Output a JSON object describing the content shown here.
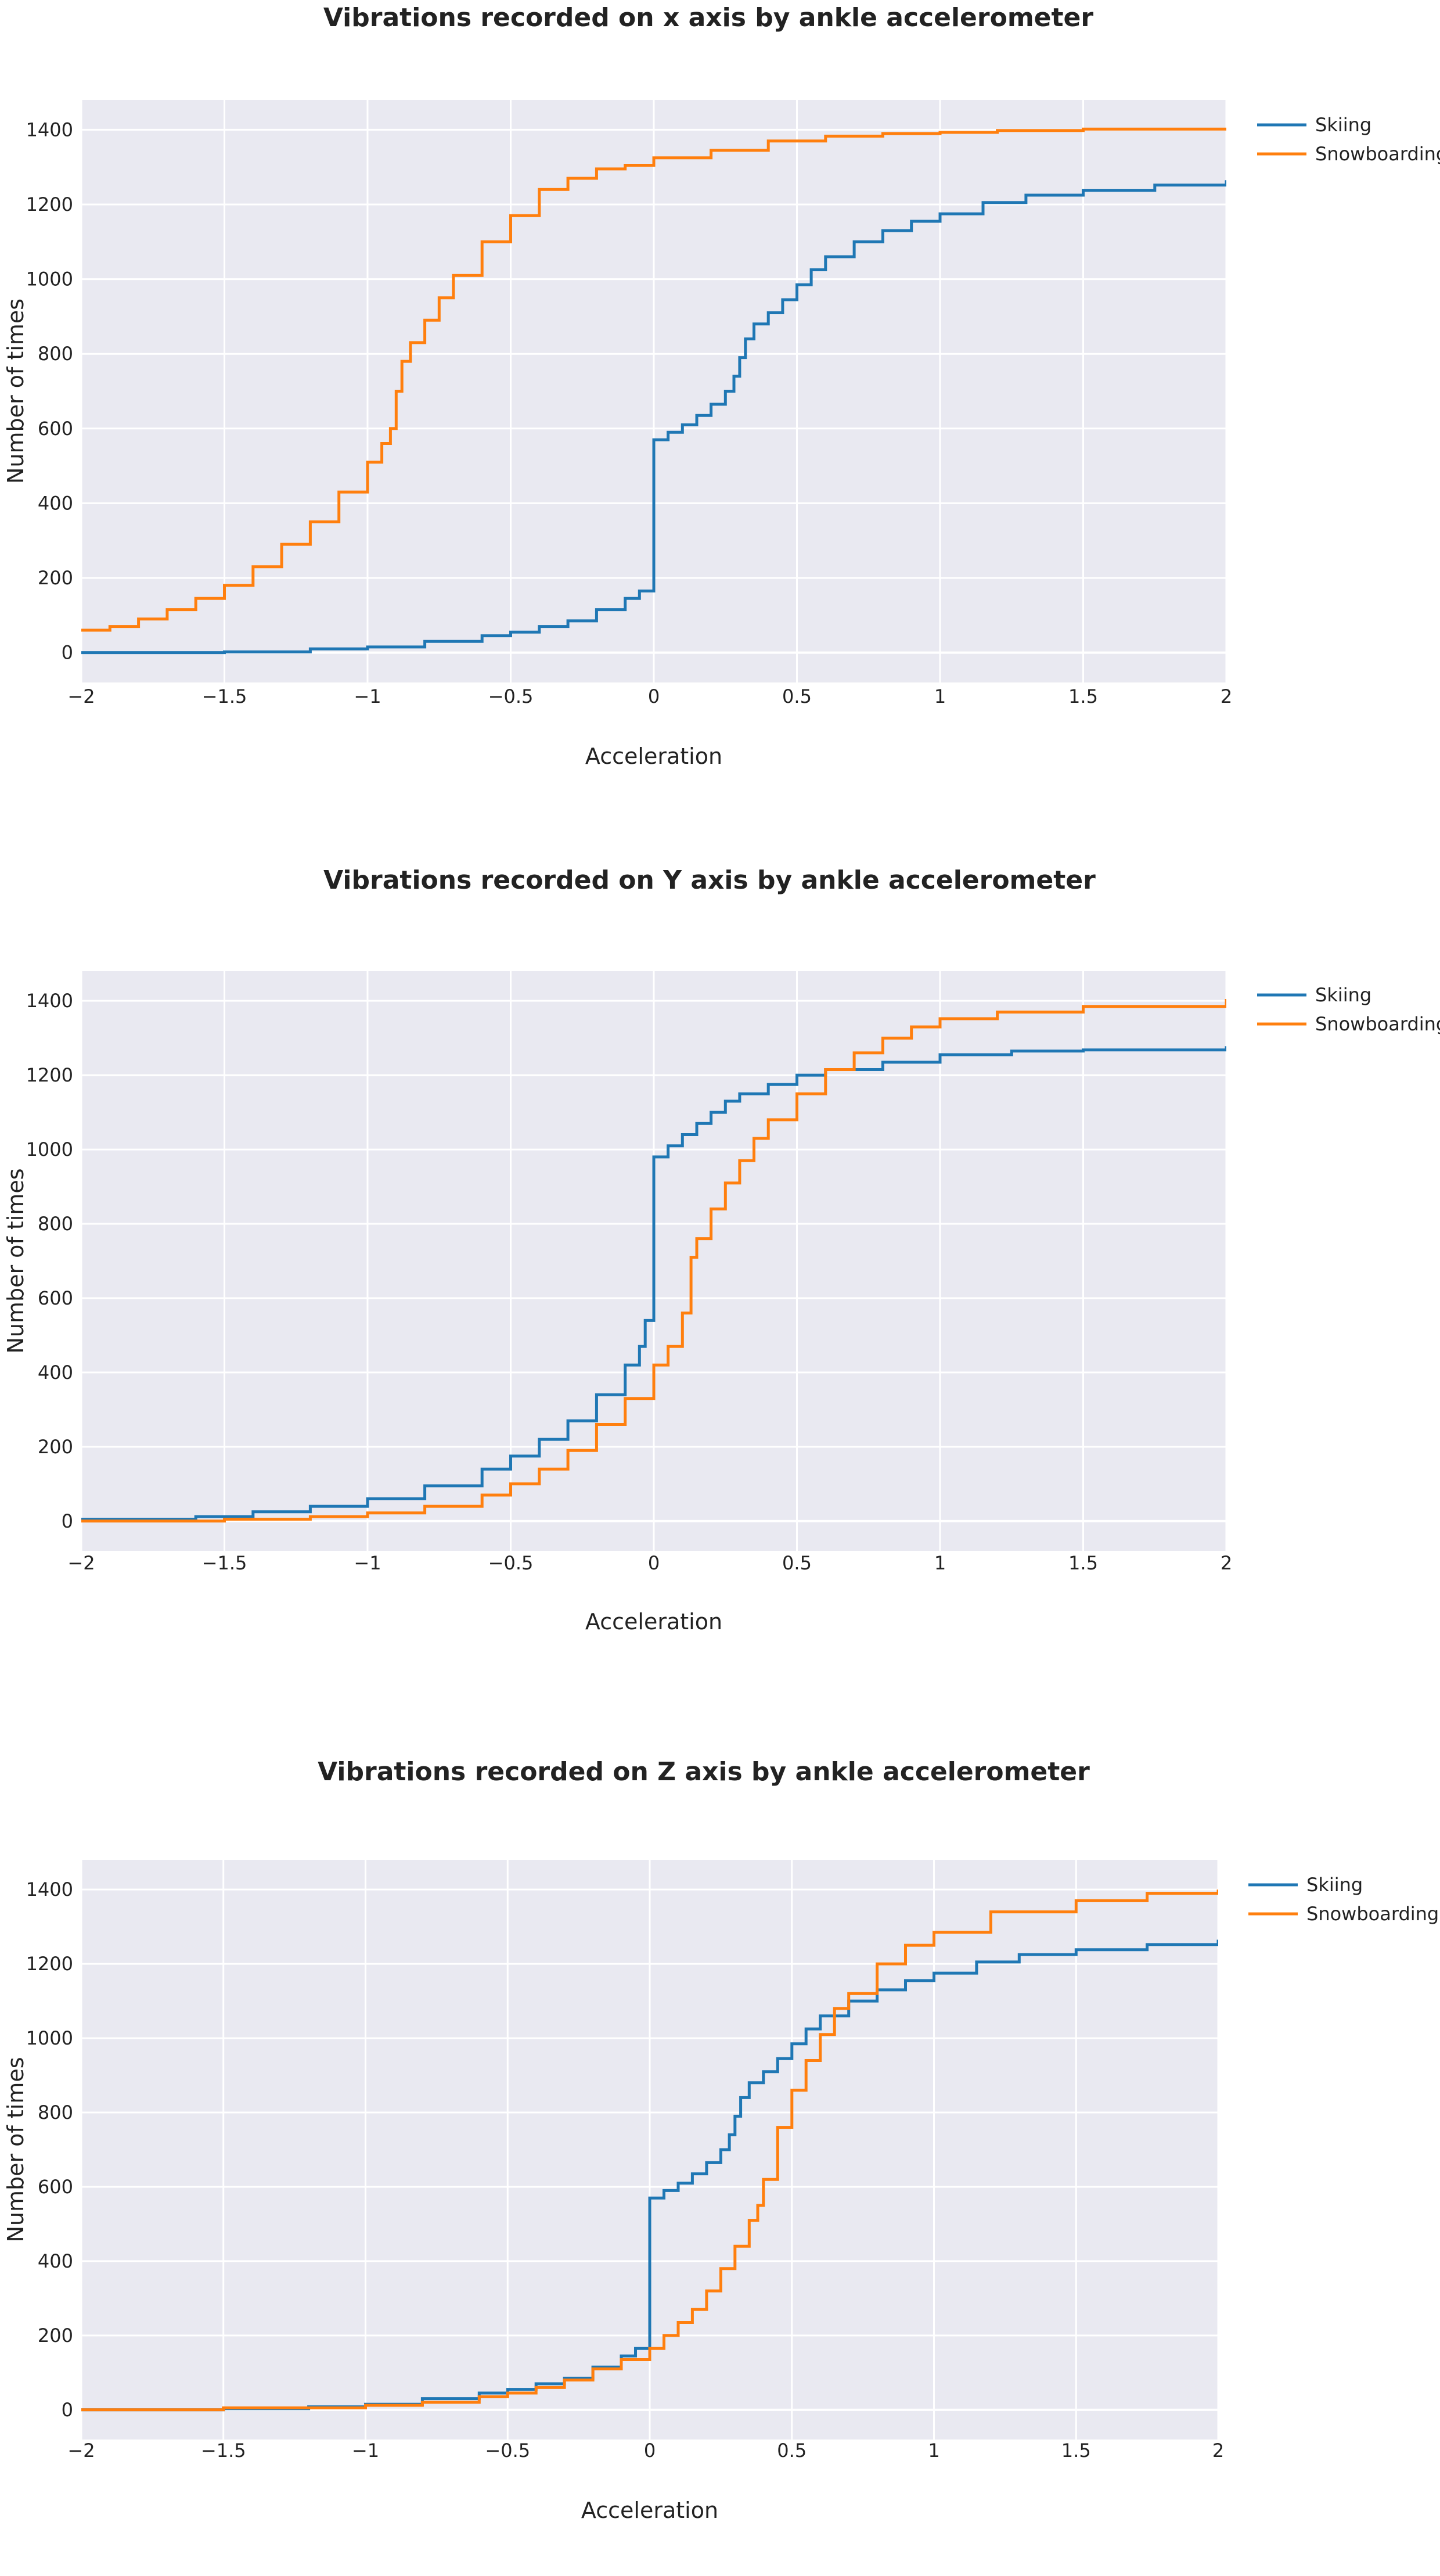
{
  "chart_data": [
    {
      "type": "line",
      "title": "Vibrations recorded on x axis by ankle accelerometer",
      "xlabel": "Acceleration",
      "ylabel": "Number of times",
      "xlim": [
        -2,
        2
      ],
      "ylim": [
        -80,
        1480
      ],
      "xticks": [
        -2,
        -1.5,
        -1,
        -0.5,
        0,
        0.5,
        1,
        1.5,
        2
      ],
      "xtick_labels": [
        "−2",
        "−1.5",
        "−1",
        "−0.5",
        "0",
        "0.5",
        "1",
        "1.5",
        "2"
      ],
      "yticks": [
        0,
        200,
        400,
        600,
        800,
        1000,
        1200,
        1400
      ],
      "ytick_labels": [
        "0",
        "200",
        "400",
        "600",
        "800",
        "1000",
        "1200",
        "1400"
      ],
      "grid": true,
      "legend": "top-right",
      "series": [
        {
          "name": "Skiing",
          "color": "#1f77b4",
          "points": [
            [
              -2,
              0
            ],
            [
              -1.5,
              2
            ],
            [
              -1.2,
              10
            ],
            [
              -1,
              15
            ],
            [
              -0.8,
              30
            ],
            [
              -0.6,
              45
            ],
            [
              -0.5,
              55
            ],
            [
              -0.4,
              70
            ],
            [
              -0.3,
              85
            ],
            [
              -0.2,
              115
            ],
            [
              -0.1,
              145
            ],
            [
              -0.05,
              165
            ],
            [
              0,
              195
            ],
            [
              0,
              570
            ],
            [
              0.05,
              590
            ],
            [
              0.1,
              610
            ],
            [
              0.15,
              635
            ],
            [
              0.2,
              665
            ],
            [
              0.25,
              700
            ],
            [
              0.28,
              740
            ],
            [
              0.3,
              790
            ],
            [
              0.32,
              840
            ],
            [
              0.35,
              880
            ],
            [
              0.4,
              910
            ],
            [
              0.45,
              945
            ],
            [
              0.5,
              985
            ],
            [
              0.55,
              1025
            ],
            [
              0.6,
              1060
            ],
            [
              0.7,
              1100
            ],
            [
              0.8,
              1130
            ],
            [
              0.9,
              1155
            ],
            [
              1,
              1175
            ],
            [
              1.15,
              1205
            ],
            [
              1.3,
              1225
            ],
            [
              1.5,
              1238
            ],
            [
              1.75,
              1252
            ],
            [
              2,
              1265
            ]
          ]
        },
        {
          "name": "Snowboarding",
          "color": "#ff7f0e",
          "points": [
            [
              -2,
              60
            ],
            [
              -1.9,
              70
            ],
            [
              -1.8,
              90
            ],
            [
              -1.7,
              115
            ],
            [
              -1.6,
              145
            ],
            [
              -1.5,
              180
            ],
            [
              -1.4,
              230
            ],
            [
              -1.3,
              290
            ],
            [
              -1.2,
              350
            ],
            [
              -1.1,
              430
            ],
            [
              -1,
              510
            ],
            [
              -0.95,
              560
            ],
            [
              -0.92,
              600
            ],
            [
              -0.9,
              630
            ],
            [
              -0.9,
              700
            ],
            [
              -0.88,
              780
            ],
            [
              -0.85,
              830
            ],
            [
              -0.8,
              890
            ],
            [
              -0.75,
              950
            ],
            [
              -0.7,
              1010
            ],
            [
              -0.6,
              1100
            ],
            [
              -0.5,
              1170
            ],
            [
              -0.4,
              1240
            ],
            [
              -0.3,
              1270
            ],
            [
              -0.2,
              1295
            ],
            [
              -0.1,
              1305
            ],
            [
              0,
              1325
            ],
            [
              0.2,
              1345
            ],
            [
              0.4,
              1370
            ],
            [
              0.6,
              1383
            ],
            [
              0.8,
              1390
            ],
            [
              1,
              1393
            ],
            [
              1.2,
              1398
            ],
            [
              1.5,
              1402
            ],
            [
              2,
              1405
            ]
          ]
        }
      ]
    },
    {
      "type": "line",
      "title": "Vibrations recorded on Y axis by ankle accelerometer",
      "xlabel": "Acceleration",
      "ylabel": "Number of times",
      "xlim": [
        -2,
        2
      ],
      "ylim": [
        -80,
        1480
      ],
      "xticks": [
        -2,
        -1.5,
        -1,
        -0.5,
        0,
        0.5,
        1,
        1.5,
        2
      ],
      "xtick_labels": [
        "−2",
        "−1.5",
        "−1",
        "−0.5",
        "0",
        "0.5",
        "1",
        "1.5",
        "2"
      ],
      "yticks": [
        0,
        200,
        400,
        600,
        800,
        1000,
        1200,
        1400
      ],
      "ytick_labels": [
        "0",
        "200",
        "400",
        "600",
        "800",
        "1000",
        "1200",
        "1400"
      ],
      "grid": true,
      "legend": "top-right",
      "series": [
        {
          "name": "Skiing",
          "color": "#1f77b4",
          "points": [
            [
              -2,
              5
            ],
            [
              -1.6,
              12
            ],
            [
              -1.4,
              25
            ],
            [
              -1.2,
              40
            ],
            [
              -1,
              60
            ],
            [
              -0.8,
              95
            ],
            [
              -0.6,
              140
            ],
            [
              -0.5,
              175
            ],
            [
              -0.4,
              220
            ],
            [
              -0.3,
              270
            ],
            [
              -0.2,
              340
            ],
            [
              -0.1,
              420
            ],
            [
              -0.05,
              470
            ],
            [
              -0.03,
              540
            ],
            [
              0,
              600
            ],
            [
              0,
              980
            ],
            [
              0.05,
              1010
            ],
            [
              0.1,
              1040
            ],
            [
              0.15,
              1070
            ],
            [
              0.2,
              1100
            ],
            [
              0.25,
              1130
            ],
            [
              0.3,
              1150
            ],
            [
              0.4,
              1175
            ],
            [
              0.5,
              1200
            ],
            [
              0.6,
              1215
            ],
            [
              0.8,
              1235
            ],
            [
              1,
              1255
            ],
            [
              1.25,
              1265
            ],
            [
              1.5,
              1268
            ],
            [
              2,
              1278
            ]
          ]
        },
        {
          "name": "Snowboarding",
          "color": "#ff7f0e",
          "points": [
            [
              -2,
              0
            ],
            [
              -1.5,
              5
            ],
            [
              -1.2,
              12
            ],
            [
              -1,
              22
            ],
            [
              -0.8,
              40
            ],
            [
              -0.6,
              70
            ],
            [
              -0.5,
              100
            ],
            [
              -0.4,
              140
            ],
            [
              -0.3,
              190
            ],
            [
              -0.2,
              260
            ],
            [
              -0.1,
              330
            ],
            [
              0,
              420
            ],
            [
              0.05,
              470
            ],
            [
              0.1,
              560
            ],
            [
              0.13,
              620
            ],
            [
              0.13,
              710
            ],
            [
              0.15,
              760
            ],
            [
              0.2,
              840
            ],
            [
              0.25,
              910
            ],
            [
              0.3,
              970
            ],
            [
              0.35,
              1030
            ],
            [
              0.4,
              1080
            ],
            [
              0.5,
              1150
            ],
            [
              0.6,
              1215
            ],
            [
              0.7,
              1260
            ],
            [
              0.8,
              1300
            ],
            [
              0.9,
              1330
            ],
            [
              1,
              1352
            ],
            [
              1.2,
              1370
            ],
            [
              1.5,
              1385
            ],
            [
              2,
              1405
            ]
          ]
        }
      ]
    },
    {
      "type": "line",
      "title": "Vibrations recorded on Z axis by ankle accelerometer",
      "xlabel": "Acceleration",
      "ylabel": "Number of times",
      "xlim": [
        -2,
        2
      ],
      "ylim": [
        -80,
        1480
      ],
      "xticks": [
        -2,
        -1.5,
        -1,
        -0.5,
        0,
        0.5,
        1,
        1.5,
        2
      ],
      "xtick_labels": [
        "−2",
        "−1.5",
        "−1",
        "−0.5",
        "0",
        "0.5",
        "1",
        "1.5",
        "2"
      ],
      "yticks": [
        0,
        200,
        400,
        600,
        800,
        1000,
        1200,
        1400
      ],
      "ytick_labels": [
        "0",
        "200",
        "400",
        "600",
        "800",
        "1000",
        "1200",
        "1400"
      ],
      "grid": true,
      "legend": "top-right",
      "series": [
        {
          "name": "Skiing",
          "color": "#1f77b4",
          "points": [
            [
              -2,
              0
            ],
            [
              -1.5,
              3
            ],
            [
              -1.2,
              8
            ],
            [
              -1,
              15
            ],
            [
              -0.8,
              30
            ],
            [
              -0.6,
              45
            ],
            [
              -0.5,
              55
            ],
            [
              -0.4,
              70
            ],
            [
              -0.3,
              85
            ],
            [
              -0.2,
              115
            ],
            [
              -0.1,
              145
            ],
            [
              -0.05,
              165
            ],
            [
              0,
              195
            ],
            [
              0,
              570
            ],
            [
              0.05,
              590
            ],
            [
              0.1,
              610
            ],
            [
              0.15,
              635
            ],
            [
              0.2,
              665
            ],
            [
              0.25,
              700
            ],
            [
              0.28,
              740
            ],
            [
              0.3,
              790
            ],
            [
              0.32,
              840
            ],
            [
              0.35,
              880
            ],
            [
              0.4,
              910
            ],
            [
              0.45,
              945
            ],
            [
              0.5,
              985
            ],
            [
              0.55,
              1025
            ],
            [
              0.6,
              1060
            ],
            [
              0.7,
              1100
            ],
            [
              0.8,
              1130
            ],
            [
              0.9,
              1155
            ],
            [
              1,
              1175
            ],
            [
              1.15,
              1205
            ],
            [
              1.3,
              1225
            ],
            [
              1.5,
              1238
            ],
            [
              1.75,
              1252
            ],
            [
              2,
              1265
            ]
          ]
        },
        {
          "name": "Snowboarding",
          "color": "#ff7f0e",
          "points": [
            [
              -2,
              0
            ],
            [
              -1.5,
              5
            ],
            [
              -1,
              12
            ],
            [
              -0.8,
              20
            ],
            [
              -0.6,
              35
            ],
            [
              -0.5,
              45
            ],
            [
              -0.4,
              60
            ],
            [
              -0.3,
              80
            ],
            [
              -0.2,
              110
            ],
            [
              -0.1,
              135
            ],
            [
              0,
              165
            ],
            [
              0.05,
              200
            ],
            [
              0.1,
              235
            ],
            [
              0.15,
              270
            ],
            [
              0.2,
              320
            ],
            [
              0.25,
              380
            ],
            [
              0.3,
              440
            ],
            [
              0.35,
              510
            ],
            [
              0.38,
              550
            ],
            [
              0.4,
              620
            ],
            [
              0.45,
              760
            ],
            [
              0.5,
              860
            ],
            [
              0.55,
              940
            ],
            [
              0.6,
              1010
            ],
            [
              0.65,
              1080
            ],
            [
              0.7,
              1120
            ],
            [
              0.8,
              1200
            ],
            [
              0.9,
              1250
            ],
            [
              1,
              1285
            ],
            [
              1.2,
              1340
            ],
            [
              1.5,
              1370
            ],
            [
              1.75,
              1390
            ],
            [
              2,
              1400
            ]
          ]
        }
      ]
    }
  ]
}
